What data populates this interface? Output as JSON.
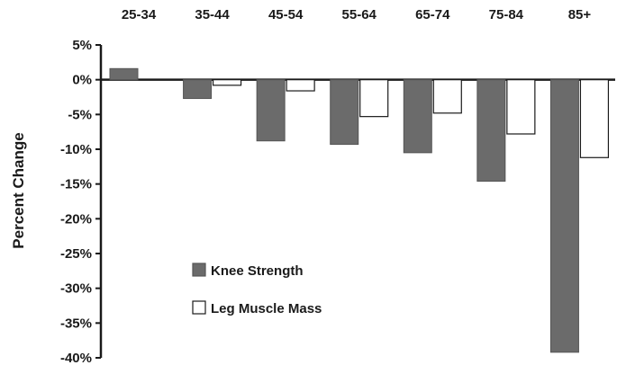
{
  "chart_data": {
    "type": "bar",
    "title": "",
    "xlabel": "",
    "ylabel": "Percent Change",
    "categories": [
      "25-34",
      "35-44",
      "45-54",
      "55-64",
      "65-74",
      "75-84",
      "85+"
    ],
    "series": [
      {
        "name": "Knee Strength",
        "color": "#6b6b6b",
        "values": [
          1.6,
          -2.7,
          -8.8,
          -9.3,
          -10.5,
          -14.6,
          -39.2
        ]
      },
      {
        "name": "Leg Muscle Mass",
        "color": "#ffffff",
        "values": [
          null,
          -0.8,
          -1.6,
          -5.3,
          -4.8,
          -7.8,
          -11.2
        ]
      }
    ],
    "ylim": [
      -40,
      5
    ],
    "yticks": [
      5,
      0,
      -5,
      -10,
      -15,
      -20,
      -25,
      -30,
      -35,
      -40
    ],
    "ytick_labels": [
      "5%",
      "0%",
      "-5%",
      "-10%",
      "-15%",
      "-20%",
      "-25%",
      "-30%",
      "-35%",
      "-40%"
    ],
    "category_labels_position": "top",
    "legend_position": "lower-left",
    "grid": false
  }
}
